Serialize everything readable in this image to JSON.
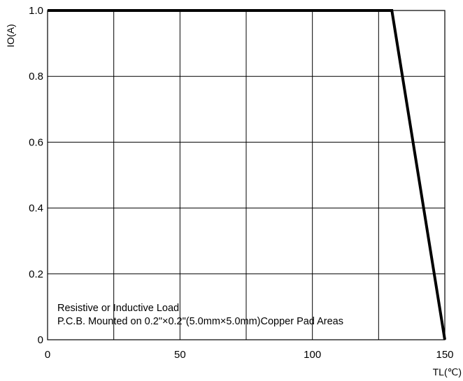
{
  "chart_data": {
    "type": "line",
    "xlabel": "TL(℃)",
    "ylabel": "IO(A)",
    "xlim": [
      0,
      150
    ],
    "ylim": [
      0,
      1.0
    ],
    "x_ticks": [
      {
        "value": 0,
        "label": "0"
      },
      {
        "value": 50,
        "label": "50"
      },
      {
        "value": 100,
        "label": "100"
      },
      {
        "value": 150,
        "label": "150"
      }
    ],
    "y_ticks": [
      {
        "value": 0,
        "label": "0"
      },
      {
        "value": 0.2,
        "label": "0.2"
      },
      {
        "value": 0.4,
        "label": "0.4"
      },
      {
        "value": 0.6,
        "label": "0.6"
      },
      {
        "value": 0.8,
        "label": "0.8"
      },
      {
        "value": 1.0,
        "label": "1.0"
      }
    ],
    "vertical_gridlines": [
      25,
      50,
      75,
      100,
      125
    ],
    "grid": true,
    "series": [
      {
        "x": [
          0,
          130,
          150
        ],
        "y": [
          1.0,
          1.0,
          0
        ]
      }
    ],
    "annotations": [
      "Resistive or Inductive Load",
      "P.C.B. Mounted on 0.2\"×0.2\"(5.0mm×5.0mm)Copper Pad Areas"
    ]
  }
}
